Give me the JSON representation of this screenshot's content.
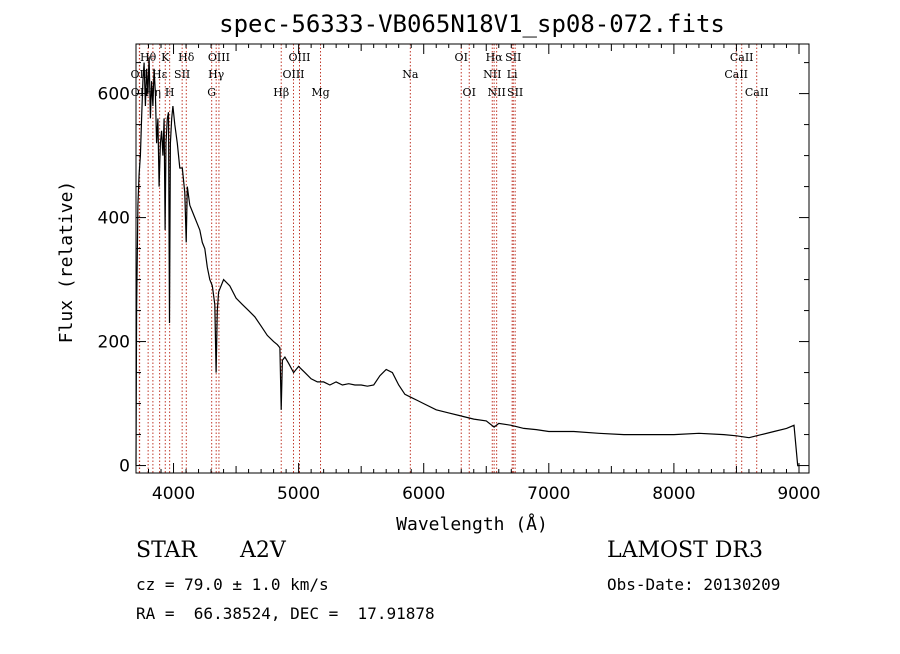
{
  "chart_data": {
    "type": "line",
    "title": "spec-56333-VB065N18V1_sp08-072.fits",
    "xlabel": "Wavelength (Å)",
    "ylabel": "Flux (relative)",
    "xlim": [
      3700,
      9080
    ],
    "ylim": [
      -12,
      680
    ],
    "xticks": [
      4000,
      5000,
      6000,
      7000,
      8000,
      9000
    ],
    "yticks": [
      0,
      200,
      400,
      600
    ],
    "series": [
      {
        "name": "flux",
        "x": [
          3700,
          3705,
          3715,
          3725,
          3735,
          3745,
          3755,
          3765,
          3775,
          3785,
          3795,
          3805,
          3815,
          3825,
          3835,
          3845,
          3855,
          3865,
          3875,
          3885,
          3895,
          3905,
          3915,
          3925,
          3933,
          3940,
          3950,
          3960,
          3968,
          3975,
          3985,
          3995,
          4010,
          4030,
          4050,
          4070,
          4090,
          4101,
          4110,
          4130,
          4150,
          4170,
          4190,
          4210,
          4230,
          4250,
          4270,
          4290,
          4310,
          4330,
          4340,
          4350,
          4360,
          4380,
          4400,
          4450,
          4500,
          4550,
          4600,
          4650,
          4700,
          4750,
          4800,
          4830,
          4850,
          4861,
          4870,
          4890,
          4920,
          4960,
          5000,
          5050,
          5100,
          5150,
          5200,
          5250,
          5300,
          5350,
          5400,
          5450,
          5500,
          5550,
          5600,
          5650,
          5700,
          5750,
          5800,
          5850,
          5900,
          5950,
          6000,
          6100,
          6200,
          6300,
          6400,
          6500,
          6563,
          6600,
          6700,
          6800,
          6900,
          7000,
          7200,
          7400,
          7600,
          7800,
          8000,
          8200,
          8400,
          8500,
          8600,
          8700,
          8800,
          8900,
          8960,
          8990,
          9000
        ],
        "y": [
          0,
          250,
          420,
          470,
          500,
          560,
          620,
          650,
          580,
          640,
          600,
          660,
          560,
          620,
          580,
          640,
          600,
          520,
          560,
          450,
          520,
          540,
          500,
          560,
          380,
          520,
          560,
          570,
          230,
          520,
          560,
          580,
          550,
          520,
          480,
          480,
          440,
          360,
          450,
          420,
          410,
          400,
          390,
          380,
          360,
          350,
          320,
          300,
          290,
          260,
          150,
          250,
          280,
          290,
          300,
          290,
          270,
          260,
          250,
          240,
          225,
          210,
          200,
          195,
          190,
          90,
          170,
          175,
          165,
          150,
          160,
          150,
          140,
          135,
          135,
          130,
          135,
          130,
          132,
          130,
          130,
          128,
          130,
          145,
          155,
          150,
          130,
          115,
          110,
          105,
          100,
          90,
          85,
          80,
          75,
          72,
          62,
          68,
          65,
          60,
          58,
          55,
          55,
          52,
          50,
          50,
          50,
          52,
          50,
          48,
          45,
          50,
          55,
          60,
          65,
          0,
          0
        ]
      }
    ],
    "lines": [
      {
        "name": "Hθ",
        "wave": 3797,
        "row": 1
      },
      {
        "name": "OII",
        "wave": 3727,
        "row": 2
      },
      {
        "name": "OII",
        "wave": 3729,
        "row": 3
      },
      {
        "name": "Hη",
        "wave": 3835,
        "row": 3
      },
      {
        "name": "Hε",
        "wave": 3889,
        "row": 2
      },
      {
        "name": "K",
        "wave": 3934,
        "row": 1
      },
      {
        "name": "H",
        "wave": 3969,
        "row": 3
      },
      {
        "name": "SII",
        "wave": 4069,
        "row": 2
      },
      {
        "name": "Hδ",
        "wave": 4102,
        "row": 1
      },
      {
        "name": "OIII",
        "wave": 4363,
        "row": 1
      },
      {
        "name": "Hγ",
        "wave": 4341,
        "row": 2
      },
      {
        "name": "G",
        "wave": 4305,
        "row": 3
      },
      {
        "name": "Hβ",
        "wave": 4861,
        "row": 3
      },
      {
        "name": "OIII",
        "wave": 4959,
        "row": 2
      },
      {
        "name": "OIII",
        "wave": 5007,
        "row": 1
      },
      {
        "name": "Mg",
        "wave": 5175,
        "row": 3
      },
      {
        "name": "Na",
        "wave": 5893,
        "row": 2
      },
      {
        "name": "OI",
        "wave": 6300,
        "row": 1
      },
      {
        "name": "OI",
        "wave": 6364,
        "row": 3
      },
      {
        "name": "NII",
        "wave": 6548,
        "row": 2
      },
      {
        "name": "Hα",
        "wave": 6563,
        "row": 1
      },
      {
        "name": "NII",
        "wave": 6583,
        "row": 3
      },
      {
        "name": "SII",
        "wave": 6716,
        "row": 1
      },
      {
        "name": "Li",
        "wave": 6707,
        "row": 2
      },
      {
        "name": "SII",
        "wave": 6731,
        "row": 3
      },
      {
        "name": "CaII",
        "wave": 8498,
        "row": 2
      },
      {
        "name": "CaII",
        "wave": 8542,
        "row": 1
      },
      {
        "name": "CaII",
        "wave": 8662,
        "row": 3
      }
    ]
  },
  "info": {
    "object_type": "STAR",
    "subclass": "A2V",
    "survey": "LAMOST DR3",
    "cz": "cz = 79.0 ± 1.0 km/s",
    "obs_date": "Obs-Date: 20130209",
    "coords": "RA =  66.38524, DEC =  17.91878"
  },
  "colors": {
    "line_marker": "#c0392b",
    "spectrum": "#000000"
  }
}
